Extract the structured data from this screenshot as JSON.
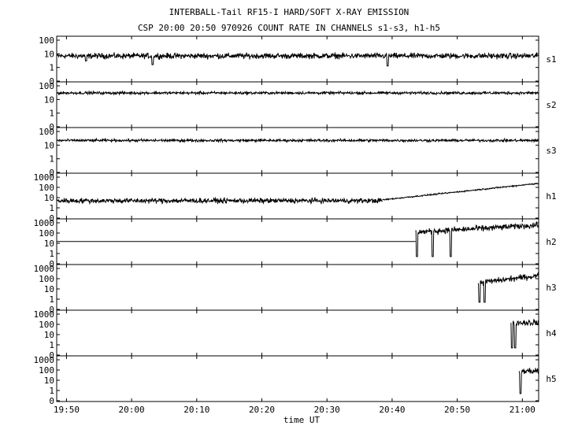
{
  "title_line1": "INTERBALL-Tail RF15-I HARD/SOFT X-RAY EMISSION",
  "title_line2": "CSP 20:00 20:50 970926  COUNT RATE IN CHANNELS s1-s3, h1-h5",
  "chart_data": {
    "type": "line",
    "xlabel": "time UT",
    "x_ticks": [
      "19:50",
      "20:00",
      "20:10",
      "20:20",
      "20:30",
      "20:40",
      "20:50",
      "21:00"
    ],
    "x_range_minutes": [
      -11.5,
      62.5
    ],
    "series": [
      {
        "name": "s1",
        "tick_labels": [
          "100",
          "10",
          "1",
          "0"
        ],
        "trace": [
          {
            "from": -11.5,
            "to": 62.5,
            "level": 7,
            "noise": 0.25,
            "dips": [
              [
                3.2,
                1.6
              ],
              [
                39.3,
                1.3
              ],
              [
                -7,
                3
              ]
            ]
          }
        ]
      },
      {
        "name": "s2",
        "tick_labels": [
          "100",
          "10",
          "1",
          "0"
        ],
        "trace": [
          {
            "from": -11.5,
            "to": 62.5,
            "level": 30,
            "noise": 0.12
          }
        ]
      },
      {
        "name": "s3",
        "tick_labels": [
          "100",
          "10",
          "1",
          "0"
        ],
        "trace": [
          {
            "from": -11.5,
            "to": 62.5,
            "level": 22,
            "noise": 0.12
          }
        ]
      },
      {
        "name": "h1",
        "tick_labels": [
          "1000",
          "100",
          "10",
          "1",
          "0"
        ],
        "trace": [
          {
            "from": -11.5,
            "to": 38.5,
            "level": 5,
            "noise": 0.3
          },
          {
            "from": 38.5,
            "to": 62.5,
            "level_start": 6,
            "level_end": 250,
            "noise": 0.08
          }
        ]
      },
      {
        "name": "h2",
        "tick_labels": [
          "1000",
          "100",
          "10",
          "1",
          "0"
        ],
        "trace": [
          {
            "from": -11.5,
            "to": 43.6,
            "level": 15,
            "noise": 0.0
          },
          {
            "from": 43.6,
            "to": 62.5,
            "level_start": 120,
            "level_end": 600,
            "noise": 0.35,
            "dips": [
              [
                43.8,
                0.5
              ],
              [
                46.2,
                0.5
              ],
              [
                49.0,
                0.5
              ]
            ]
          }
        ]
      },
      {
        "name": "h3",
        "tick_labels": [
          "1000",
          "100",
          "10",
          "1",
          "0"
        ],
        "trace": [
          {
            "from": 53.2,
            "to": 62.5,
            "level_start": 40,
            "level_end": 200,
            "noise": 0.35,
            "dips": [
              [
                53.4,
                0.5
              ],
              [
                54.2,
                0.5
              ]
            ]
          }
        ]
      },
      {
        "name": "h4",
        "tick_labels": [
          "1000",
          "100",
          "10",
          "1",
          "0"
        ],
        "trace": [
          {
            "from": 58.2,
            "to": 62.5,
            "level": 150,
            "noise": 0.4,
            "dips": [
              [
                58.4,
                0.5
              ],
              [
                58.9,
                0.5
              ]
            ]
          }
        ]
      },
      {
        "name": "h5",
        "tick_labels": [
          "1000",
          "100",
          "10",
          "1",
          "0"
        ],
        "trace": [
          {
            "from": 59.5,
            "to": 62.5,
            "level": 80,
            "noise": 0.4,
            "dips": [
              [
                59.7,
                0.5
              ]
            ]
          }
        ]
      }
    ]
  }
}
